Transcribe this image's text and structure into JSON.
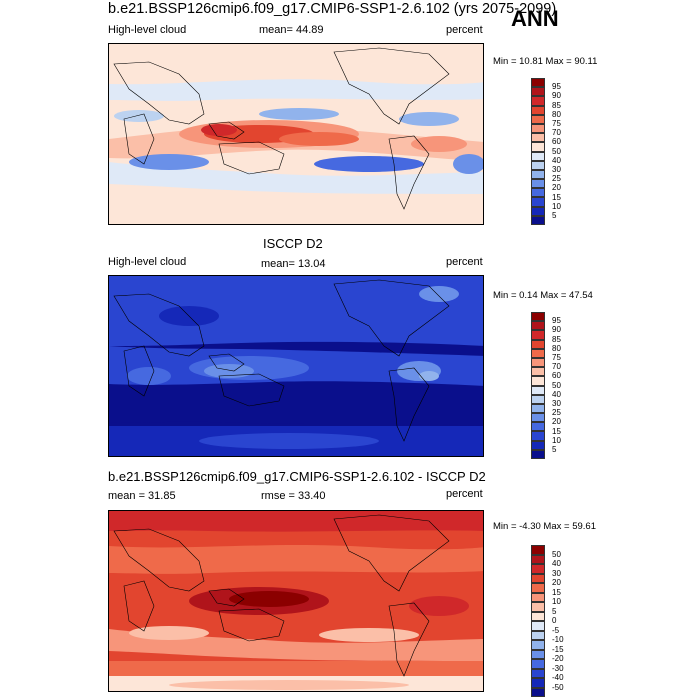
{
  "title": "b.e21.BSSP126cmip6.f09_g17.CMIP6-SSP1-2.6.102 (yrs 2075-2099)",
  "season": "ANN",
  "panels": [
    {
      "variable": "High-level cloud",
      "mean_text": "mean=  44.89",
      "units": "percent",
      "minmax": "Min =  10.81  Max =  90.11"
    },
    {
      "heading": "ISCCP D2",
      "variable": "High-level cloud",
      "mean_text": "mean=  13.04",
      "units": "percent",
      "minmax": "Min =  0.14  Max =  47.54"
    },
    {
      "heading": "b.e21.BSSP126cmip6.f09_g17.CMIP6-SSP1-2.6.102 - ISCCP D2",
      "mean_text": "mean =  31.85",
      "rmse_text": "rmse =  33.40",
      "units": "percent",
      "minmax": "Min =  -4.30  Max =  59.61"
    }
  ],
  "colorbar_abs": {
    "labels": [
      "95",
      "90",
      "85",
      "80",
      "75",
      "70",
      "60",
      "50",
      "40",
      "30",
      "25",
      "20",
      "15",
      "10",
      "5"
    ],
    "colors": [
      "#8b0000",
      "#b0141b",
      "#d0282a",
      "#e2452f",
      "#ef6a4a",
      "#f7957a",
      "#fbbfa8",
      "#fde6d8",
      "#dfe9f7",
      "#bcd2f0",
      "#91b3ec",
      "#6a90e8",
      "#4669e0",
      "#2a45d0",
      "#1528b8",
      "#0a0f8c"
    ]
  },
  "colorbar_diff": {
    "labels": [
      "50",
      "40",
      "30",
      "20",
      "15",
      "10",
      "5",
      "0",
      "-5",
      "-10",
      "-15",
      "-20",
      "-30",
      "-40",
      "-50"
    ],
    "colors": [
      "#8b0000",
      "#b0141b",
      "#d0282a",
      "#e2452f",
      "#ef6a4a",
      "#f7957a",
      "#fbbfa8",
      "#fde6d8",
      "#dfe9f7",
      "#bcd2f0",
      "#91b3ec",
      "#6a90e8",
      "#4669e0",
      "#2a45d0",
      "#1528b8",
      "#0a0f8c"
    ]
  }
}
